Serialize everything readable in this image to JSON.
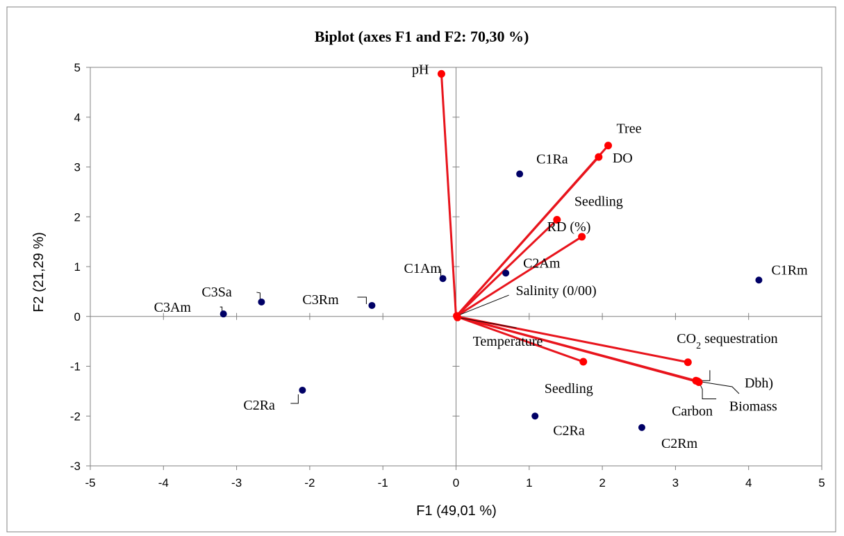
{
  "chart_data": {
    "type": "scatter",
    "title": "Biplot (axes F1 and F2: 70,30 %)",
    "xlabel": "F1 (49,01 %)",
    "ylabel": "F2 (21,29 %)",
    "xlim": [
      -5,
      5
    ],
    "ylim": [
      -3,
      5
    ],
    "x_ticks": [
      "-5",
      "-4",
      "-3",
      "-2",
      "-1",
      "0",
      "1",
      "2",
      "3",
      "4",
      "5"
    ],
    "y_ticks": [
      "-3",
      "-2",
      "-1",
      "0",
      "1",
      "2",
      "3",
      "4",
      "5"
    ],
    "grid": false,
    "colors": {
      "variables": "#ff0000",
      "vectors": "#e8141c",
      "observations": "#000066",
      "frame": "#808080"
    },
    "variables": [
      {
        "label": "pH",
        "x": -0.2,
        "y": 4.87
      },
      {
        "label": "Tree",
        "x": 2.08,
        "y": 3.43
      },
      {
        "label": "DO",
        "x": 1.95,
        "y": 3.2
      },
      {
        "label": "Seedling",
        "x": 1.38,
        "y": 1.94
      },
      {
        "label": "RD (%)",
        "x": 1.72,
        "y": 1.6
      },
      {
        "label": "Salinity (0/00)",
        "x": 0.01,
        "y": 0.01
      },
      {
        "label": "Temperature",
        "x": 0.02,
        "y": -0.02
      },
      {
        "label": "CO",
        "sub": "2",
        "suffix": " sequestration",
        "x": 3.17,
        "y": -0.92
      },
      {
        "label": "Dbh)",
        "x": 3.3,
        "y": -1.3
      },
      {
        "label": "Carbon",
        "x": 3.32,
        "y": -1.32
      },
      {
        "label": "Biomass",
        "x": 3.28,
        "y": -1.29
      },
      {
        "label": "Seedling",
        "x": 1.74,
        "y": -0.91
      }
    ],
    "observations": [
      {
        "label": "C1Ra",
        "x": 0.87,
        "y": 2.86
      },
      {
        "label": "C1Am",
        "x": -0.18,
        "y": 0.76
      },
      {
        "label": "C2Am",
        "x": 0.68,
        "y": 0.87
      },
      {
        "label": "C1Rm",
        "x": 4.14,
        "y": 0.73
      },
      {
        "label": "C3Sa",
        "x": -2.66,
        "y": 0.29
      },
      {
        "label": "C3Rm",
        "x": -1.15,
        "y": 0.22
      },
      {
        "label": "C3Am",
        "x": -3.18,
        "y": 0.05
      },
      {
        "label": "C2Ra",
        "x": -2.1,
        "y": -1.48
      },
      {
        "label": "C2Ra",
        "x": 1.08,
        "y": -2.0
      },
      {
        "label": "C2Rm",
        "x": 2.54,
        "y": -2.23
      }
    ]
  }
}
